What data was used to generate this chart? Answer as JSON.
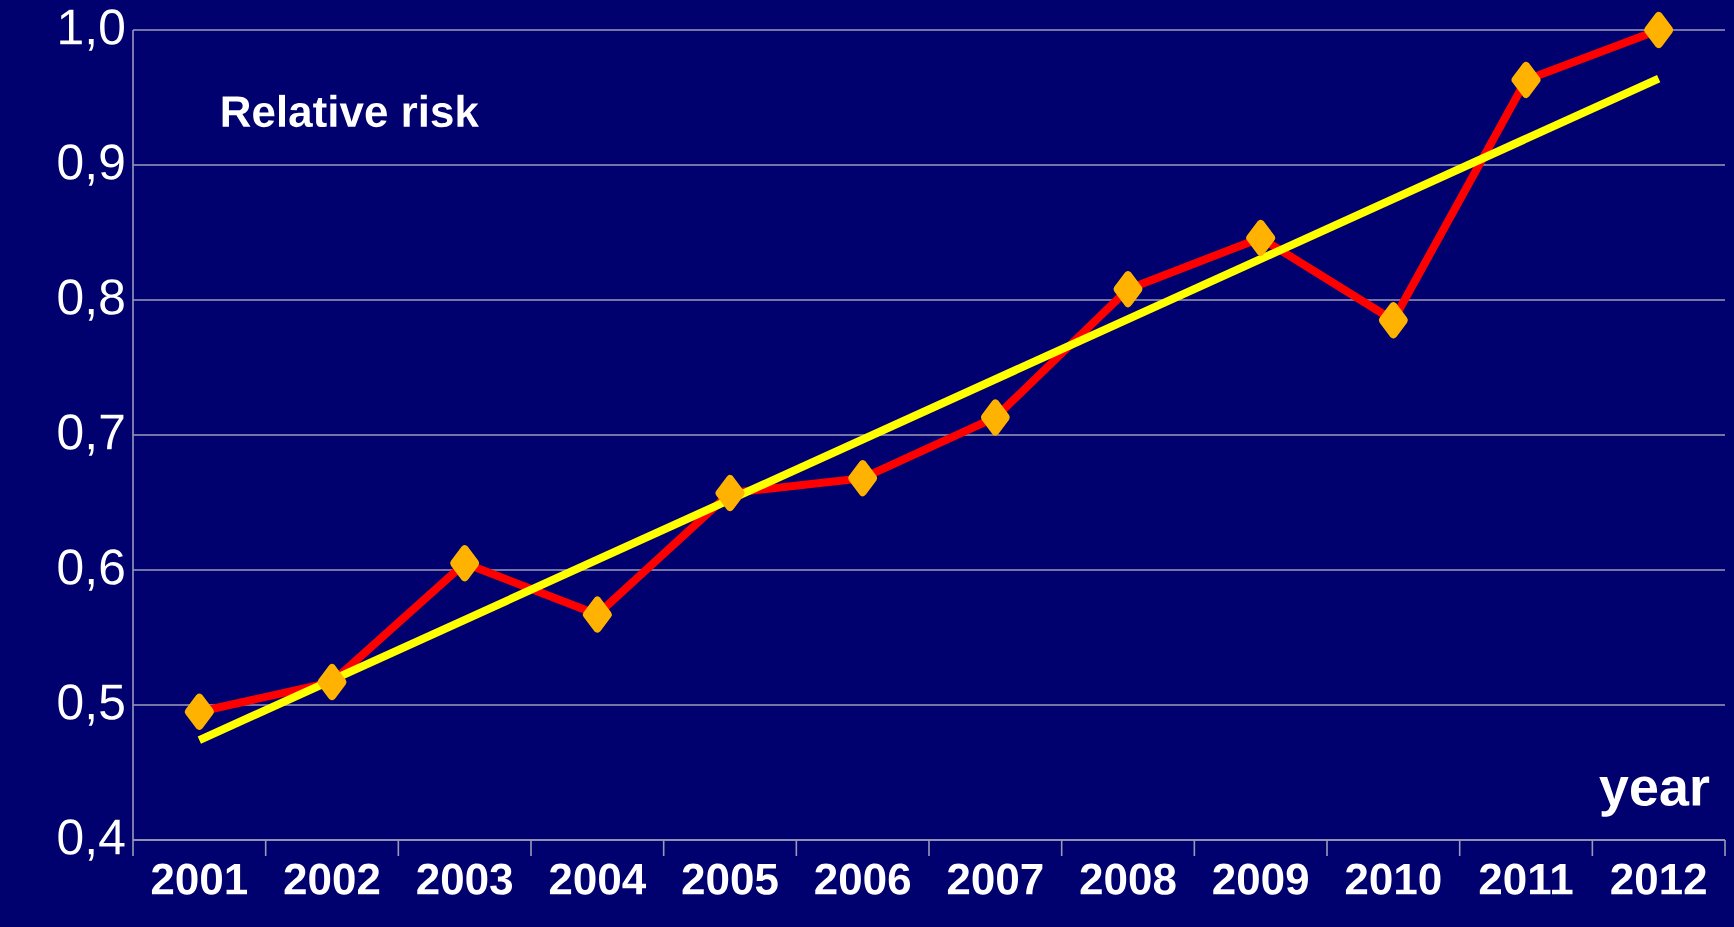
{
  "chart_data": {
    "type": "line",
    "xlabel": "year",
    "ylabel": "Relative risk",
    "x": [
      2001,
      2002,
      2003,
      2004,
      2005,
      2006,
      2007,
      2008,
      2009,
      2010,
      2011,
      2012
    ],
    "series": [
      {
        "color": "#ff0000",
        "marker": "diamond",
        "values": [
          0.495,
          0.517,
          0.605,
          0.567,
          0.657,
          0.668,
          0.713,
          0.808,
          0.846,
          0.785,
          0.963,
          1.0
        ]
      },
      {
        "color": "#ffff00",
        "x": [
          2001,
          2012
        ],
        "values": [
          0.474,
          0.964
        ]
      }
    ],
    "xlim": [
      2000.5,
      2012.5
    ],
    "xticks": [
      2001,
      2002,
      2003,
      2004,
      2005,
      2006,
      2007,
      2008,
      2009,
      2010,
      2011,
      2012
    ],
    "ylim": [
      0.4,
      1.0
    ],
    "yticks": [
      {
        "value": 0.4,
        "label": "0,4"
      },
      {
        "value": 0.5,
        "label": "0,5"
      },
      {
        "value": 0.6,
        "label": "0,6"
      },
      {
        "value": 0.7,
        "label": "0,7"
      },
      {
        "value": 0.8,
        "label": "0,8"
      },
      {
        "value": 0.9,
        "label": "0,9"
      },
      {
        "value": 1.0,
        "label": "1,0"
      }
    ],
    "grid": "y"
  }
}
